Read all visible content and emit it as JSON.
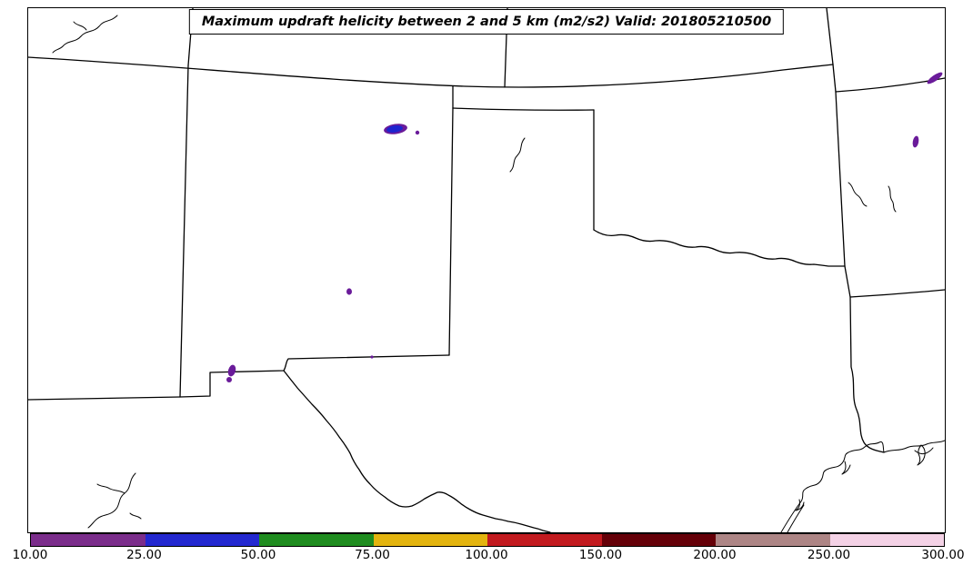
{
  "figure": {
    "title": "Maximum updraft helicity between 2 and 5 km (m2/s2) Valid: 201805210500"
  },
  "chart_data": {
    "type": "heatmap",
    "title": "Maximum updraft helicity between 2 and 5 km (m2/s2) Valid: 201805210500",
    "variable": "Maximum updraft helicity between 2 and 5 km",
    "units": "m2/s2",
    "valid": "201805210500",
    "region": "South-central United States: Colorado, Kansas, New Mexico, Oklahoma, Texas with parts of Utah, Arizona, Missouri, Arkansas, Louisiana and northern Mexico",
    "colorbar": {
      "orientation": "horizontal",
      "position": "bottom",
      "boundaries": [
        10,
        25,
        50,
        75,
        100,
        150,
        200,
        250,
        300
      ],
      "tick_labels": [
        "10.00",
        "25.00",
        "50.00",
        "75.00",
        "100.00",
        "150.00",
        "200.00",
        "250.00",
        "300.00"
      ],
      "colors": [
        "#7b2d8b",
        "#2328d0",
        "#1f8c1f",
        "#e3b40f",
        "#c21a1f",
        "#650008",
        "#ad8585",
        "#f4d2e6"
      ],
      "swath_purple": "#6a1b9a",
      "swath_blue": "#1d24cf"
    },
    "helicity_swaths": [
      {
        "location": "northeast New Mexico (elongated swath)",
        "approx_value": "25-50 core within 10-25"
      },
      {
        "location": "northeast New Mexico, small spot east of main swath",
        "approx_value": "10-25"
      },
      {
        "location": "east-central New Mexico",
        "approx_value": "10-25"
      },
      {
        "location": "southeast New Mexico near Texas state line",
        "approx_value": "10-25"
      },
      {
        "location": "southwest New Mexico near bootheel",
        "approx_value": "10-25"
      },
      {
        "location": "far northeast corner of map (southern Missouri)",
        "approx_value": "10-25"
      },
      {
        "location": "western Arkansas",
        "approx_value": "10-25"
      }
    ]
  }
}
